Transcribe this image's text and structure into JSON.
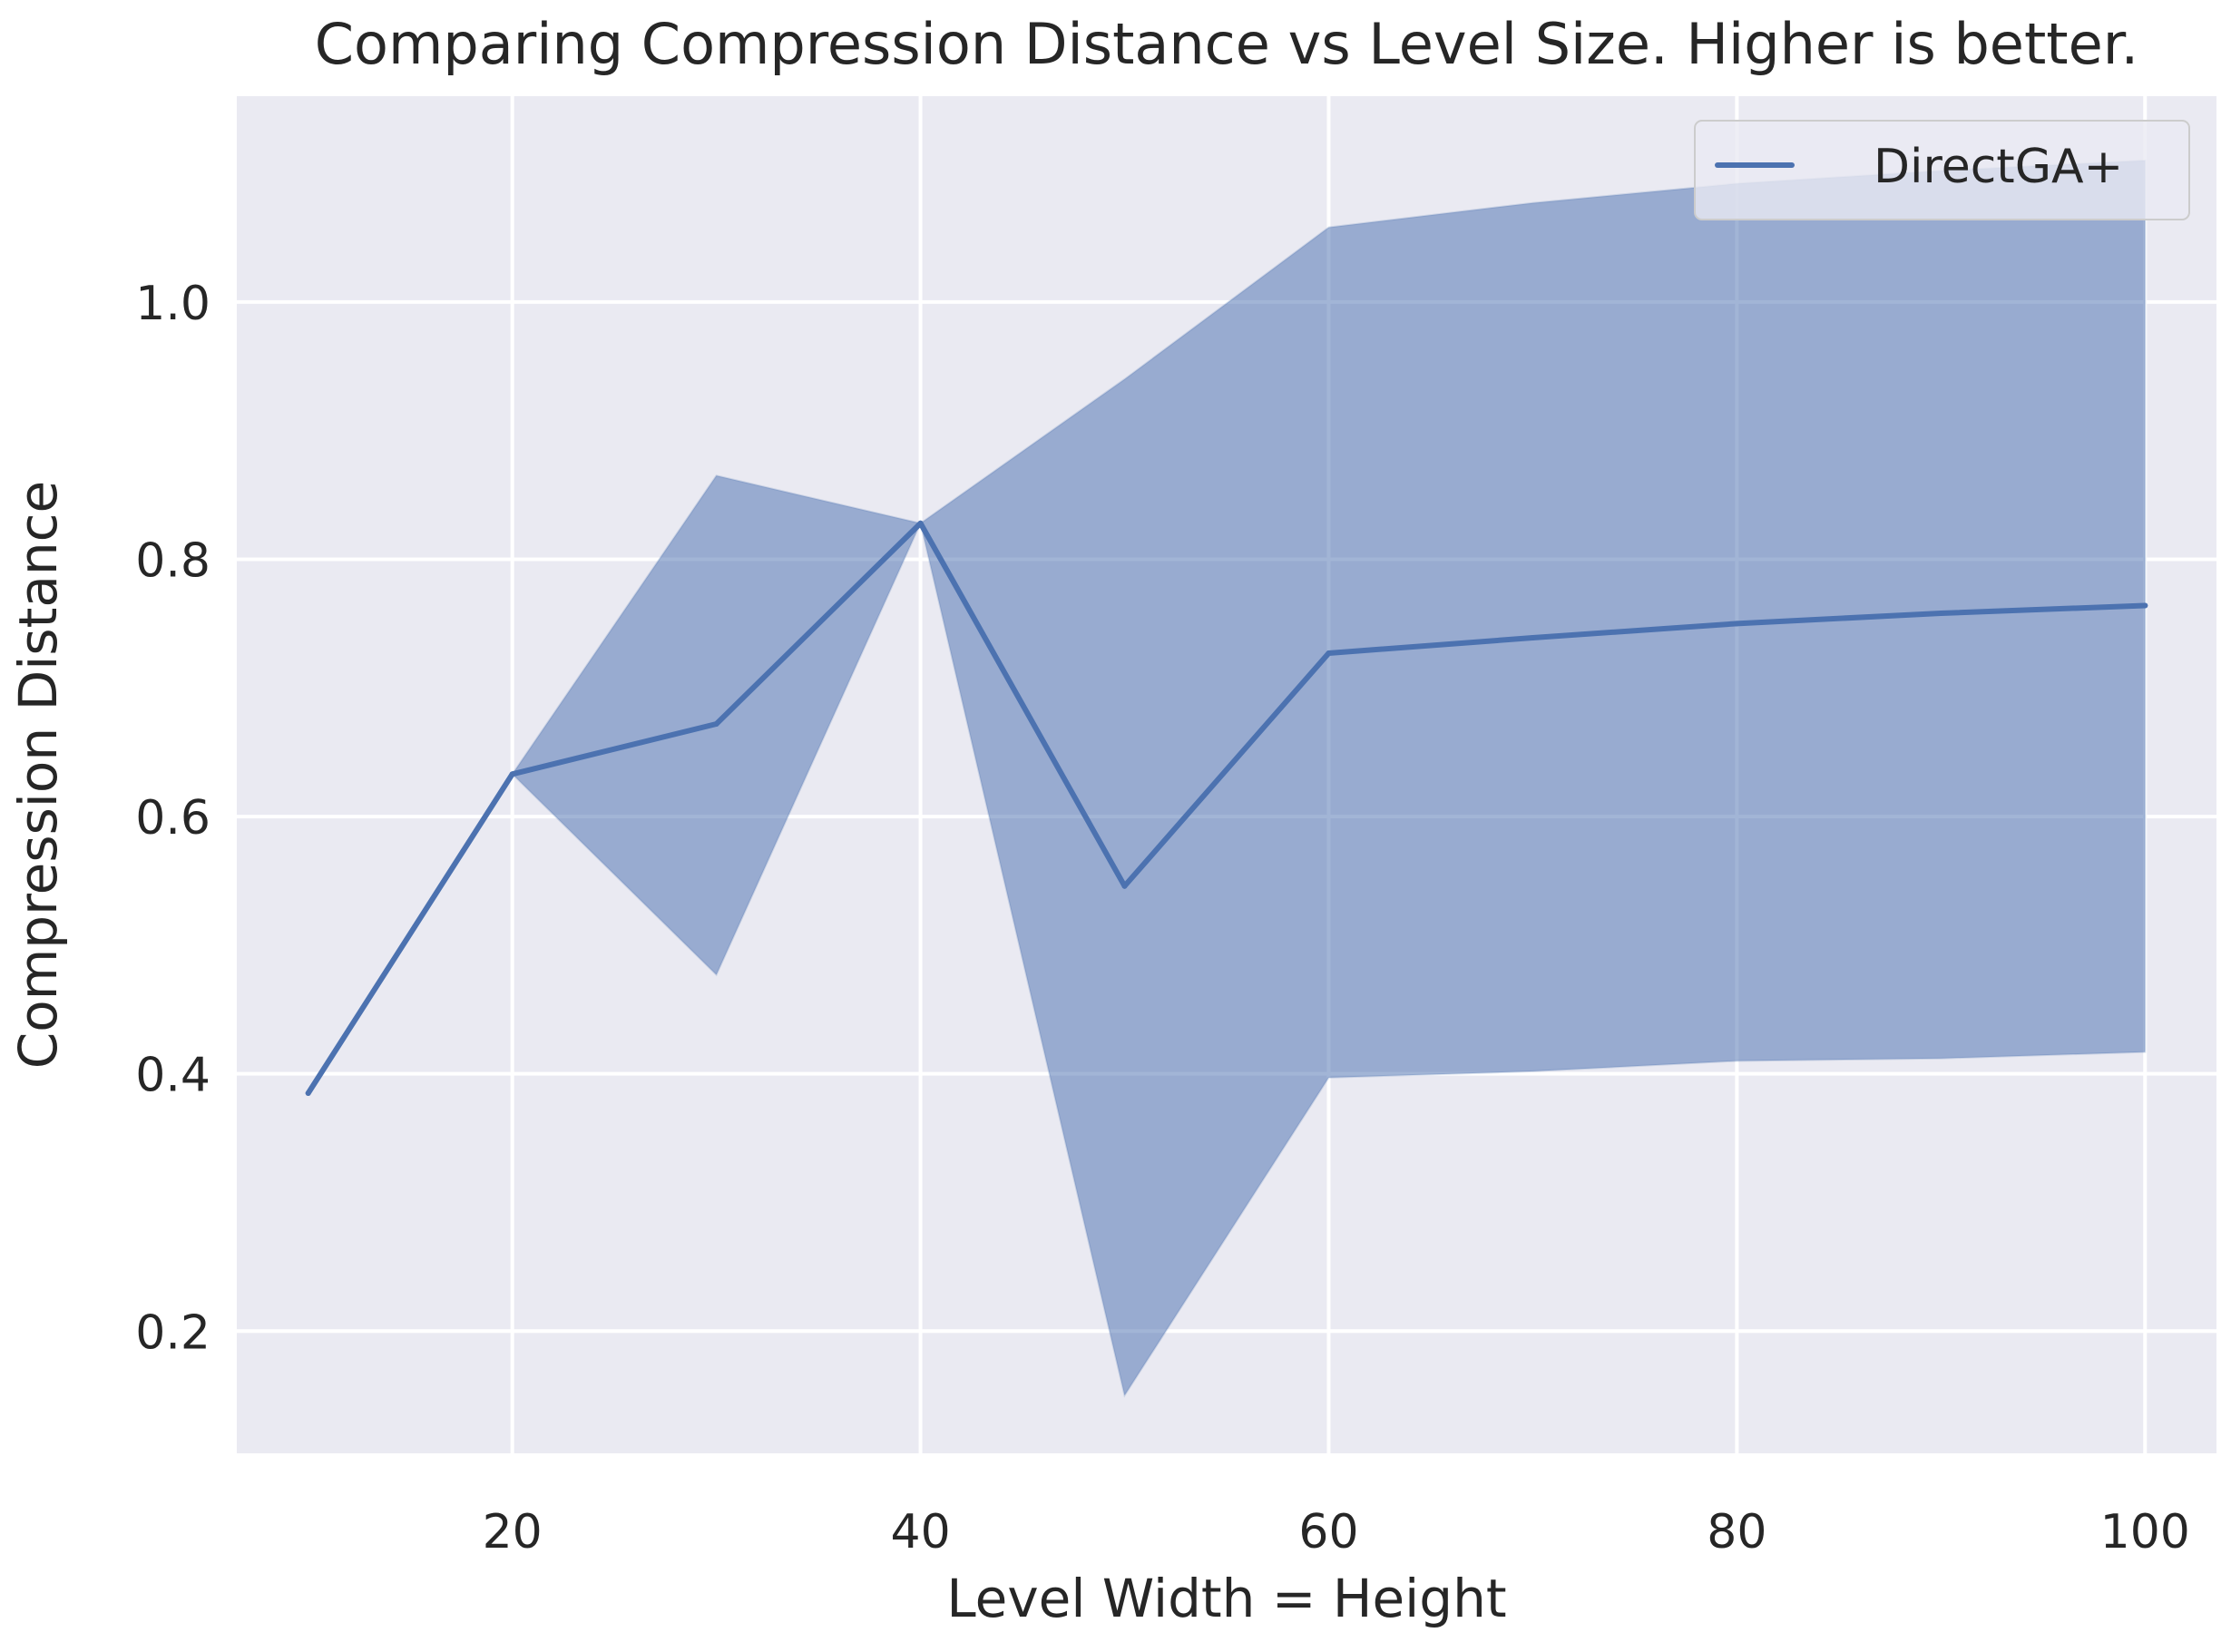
{
  "chart_data": {
    "type": "line",
    "title": "Comparing Compression Distance vs Level Size. Higher is better.",
    "xlabel": "Level Width = Height",
    "ylabel": "Compression Distance",
    "xlim": [
      6.5,
      103.5
    ],
    "ylim": [
      0.105,
      1.16
    ],
    "x_ticks": [
      20,
      40,
      60,
      80,
      100
    ],
    "x_tick_labels": [
      "20",
      "40",
      "60",
      "80",
      "100"
    ],
    "y_ticks": [
      0.2,
      0.4,
      0.6,
      0.8,
      1.0
    ],
    "y_tick_labels": [
      "0.2",
      "0.4",
      "0.6",
      "0.8",
      "1.0"
    ],
    "grid": true,
    "legend_position": "top-right",
    "colors": {
      "background": "#eaeaf2",
      "grid": "#ffffff",
      "line": "#4c72b0",
      "band": "#4c72b0"
    },
    "series": [
      {
        "name": "DirectGA+",
        "x": [
          10,
          20,
          30,
          40,
          50,
          60,
          70,
          80,
          90,
          100
        ],
        "y": [
          0.385,
          0.633,
          0.672,
          0.828,
          0.546,
          0.727,
          0.739,
          0.75,
          0.758,
          0.764
        ],
        "lower": [
          0.385,
          0.633,
          0.477,
          0.828,
          0.15,
          0.397,
          0.402,
          0.41,
          0.412,
          0.417
        ],
        "upper": [
          0.385,
          0.633,
          0.865,
          0.828,
          0.94,
          1.058,
          1.077,
          1.092,
          1.102,
          1.11
        ]
      }
    ]
  }
}
